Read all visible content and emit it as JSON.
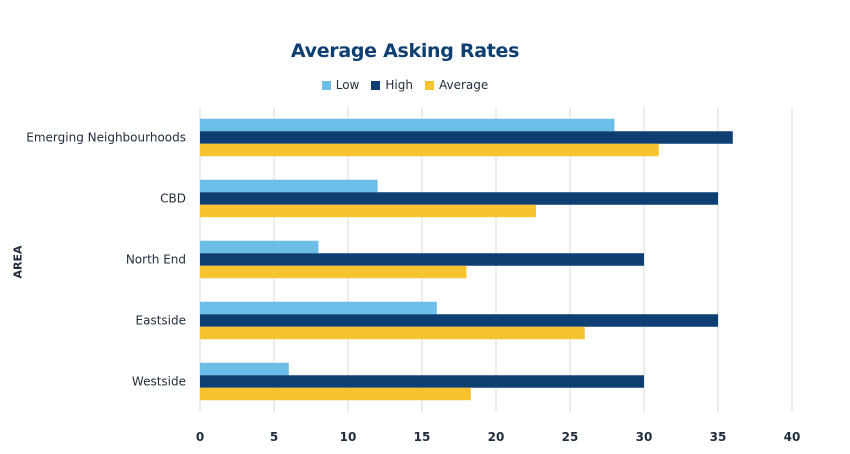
{
  "chart_data": {
    "type": "bar",
    "orientation": "horizontal",
    "title": "Average Asking Rates",
    "xlabel": "",
    "ylabel": "AREA",
    "categories": [
      "Emerging Neighbourhoods",
      "CBD",
      "North End",
      "Eastside",
      "Westside"
    ],
    "series": [
      {
        "name": "Low",
        "color": "#6cbde8",
        "values": [
          28,
          12,
          8,
          16,
          6
        ]
      },
      {
        "name": "High",
        "color": "#0d3f73",
        "values": [
          36,
          35,
          30,
          35,
          30
        ]
      },
      {
        "name": "Average",
        "color": "#f7c430",
        "values": [
          31,
          22.7,
          18,
          26,
          18.3
        ]
      }
    ],
    "xlim": [
      0,
      40
    ],
    "xticks": [
      0,
      5,
      10,
      15,
      20,
      25,
      30,
      35,
      40
    ],
    "grid": "vertical",
    "legend_position": "top"
  }
}
